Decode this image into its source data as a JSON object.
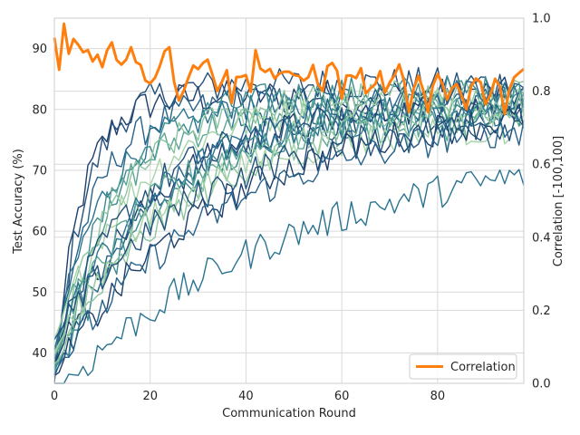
{
  "chart_data": {
    "type": "line",
    "xlabel": "Communication Round",
    "ylabel": "Test Accuracy (%)",
    "y2label": "Correlation [-100,100]",
    "xlim": [
      0,
      98
    ],
    "ylim": [
      35,
      95
    ],
    "y2lim": [
      0,
      1
    ],
    "x_ticks": [
      0,
      20,
      40,
      60,
      80
    ],
    "y_ticks": [
      40,
      50,
      60,
      70,
      80,
      90
    ],
    "y2_ticks": [
      "0.0",
      "0.2",
      "0.4",
      "0.6",
      "0.8",
      "1.0"
    ],
    "y2_tick_values": [
      0,
      0.2,
      0.4,
      0.6,
      0.8,
      1.0
    ],
    "grid": true,
    "legend_position": "lower-right",
    "legend": [
      {
        "label": "Correlation",
        "color": "#ff7f0e"
      }
    ],
    "correlation_series": {
      "name": "Correlation",
      "color": "#ff7f0e",
      "axis": "right",
      "anchors": [
        [
          0,
          0.93
        ],
        [
          1,
          0.84
        ],
        [
          2,
          1.0
        ],
        [
          3,
          0.9
        ],
        [
          4,
          0.94
        ],
        [
          5,
          0.92
        ],
        [
          8,
          0.9
        ],
        [
          10,
          0.89
        ],
        [
          12,
          0.92
        ],
        [
          14,
          0.86
        ],
        [
          16,
          0.93
        ],
        [
          18,
          0.87
        ],
        [
          20,
          0.82
        ],
        [
          22,
          0.88
        ],
        [
          23,
          0.93
        ],
        [
          24,
          0.9
        ],
        [
          26,
          0.79
        ],
        [
          28,
          0.85
        ],
        [
          30,
          0.88
        ],
        [
          32,
          0.87
        ],
        [
          34,
          0.82
        ],
        [
          36,
          0.87
        ],
        [
          37,
          0.78
        ],
        [
          39,
          0.86
        ],
        [
          41,
          0.8
        ],
        [
          42,
          0.9
        ],
        [
          44,
          0.87
        ],
        [
          46,
          0.84
        ],
        [
          48,
          0.86
        ],
        [
          50,
          0.82
        ],
        [
          52,
          0.83
        ],
        [
          54,
          0.86
        ],
        [
          56,
          0.82
        ],
        [
          58,
          0.88
        ],
        [
          60,
          0.8
        ],
        [
          62,
          0.85
        ],
        [
          64,
          0.84
        ],
        [
          66,
          0.79
        ],
        [
          68,
          0.84
        ],
        [
          70,
          0.8
        ],
        [
          72,
          0.86
        ],
        [
          74,
          0.76
        ],
        [
          76,
          0.83
        ],
        [
          78,
          0.74
        ],
        [
          80,
          0.84
        ],
        [
          82,
          0.78
        ],
        [
          84,
          0.83
        ],
        [
          86,
          0.77
        ],
        [
          88,
          0.84
        ],
        [
          90,
          0.78
        ],
        [
          92,
          0.84
        ],
        [
          94,
          0.76
        ],
        [
          96,
          0.85
        ],
        [
          98,
          0.86
        ]
      ],
      "noise": 0.025
    },
    "accuracy_series_style": {
      "count": 20,
      "colors": [
        "#1e3f6b",
        "#23517c",
        "#26628a",
        "#2a7390",
        "#3b8b8f",
        "#5aa593",
        "#8cc4a0",
        "#a5d3a7"
      ],
      "line_width": 1.4
    },
    "accuracy_series": [
      {
        "start": 35,
        "plateau": 82,
        "rate": 0.18,
        "trend": 0.02
      },
      {
        "start": 36,
        "plateau": 84,
        "rate": 0.15,
        "trend": 0.01
      },
      {
        "start": 38,
        "plateau": 81,
        "rate": 0.12,
        "trend": 0.03
      },
      {
        "start": 40,
        "plateau": 80,
        "rate": 0.1,
        "trend": 0.02
      },
      {
        "start": 37,
        "plateau": 83,
        "rate": 0.08,
        "trend": 0.0
      },
      {
        "start": 36,
        "plateau": 79,
        "rate": 0.09,
        "trend": 0.04
      },
      {
        "start": 39,
        "plateau": 82,
        "rate": 0.07,
        "trend": 0.02
      },
      {
        "start": 42,
        "plateau": 81,
        "rate": 0.06,
        "trend": 0.02
      },
      {
        "start": 38,
        "plateau": 80,
        "rate": 0.05,
        "trend": 0.03
      },
      {
        "start": 40,
        "plateau": 78,
        "rate": 0.06,
        "trend": 0.04
      },
      {
        "start": 36,
        "plateau": 83,
        "rate": 0.045,
        "trend": 0.0
      },
      {
        "start": 41,
        "plateau": 79,
        "rate": 0.05,
        "trend": 0.03
      },
      {
        "start": 37,
        "plateau": 82,
        "rate": 0.04,
        "trend": 0.02
      },
      {
        "start": 39,
        "plateau": 77,
        "rate": 0.055,
        "trend": 0.04
      },
      {
        "start": 38,
        "plateau": 81,
        "rate": 0.035,
        "trend": 0.02
      },
      {
        "start": 40,
        "plateau": 76,
        "rate": 0.045,
        "trend": 0.05
      },
      {
        "start": 36,
        "plateau": 80,
        "rate": 0.03,
        "trend": 0.03
      },
      {
        "start": 42,
        "plateau": 78,
        "rate": 0.035,
        "trend": 0.03
      },
      {
        "start": 37,
        "plateau": 79,
        "rate": 0.028,
        "trend": 0.02
      },
      {
        "start": 33,
        "plateau": 75,
        "rate": 0.02,
        "trend": 0.0
      }
    ]
  }
}
